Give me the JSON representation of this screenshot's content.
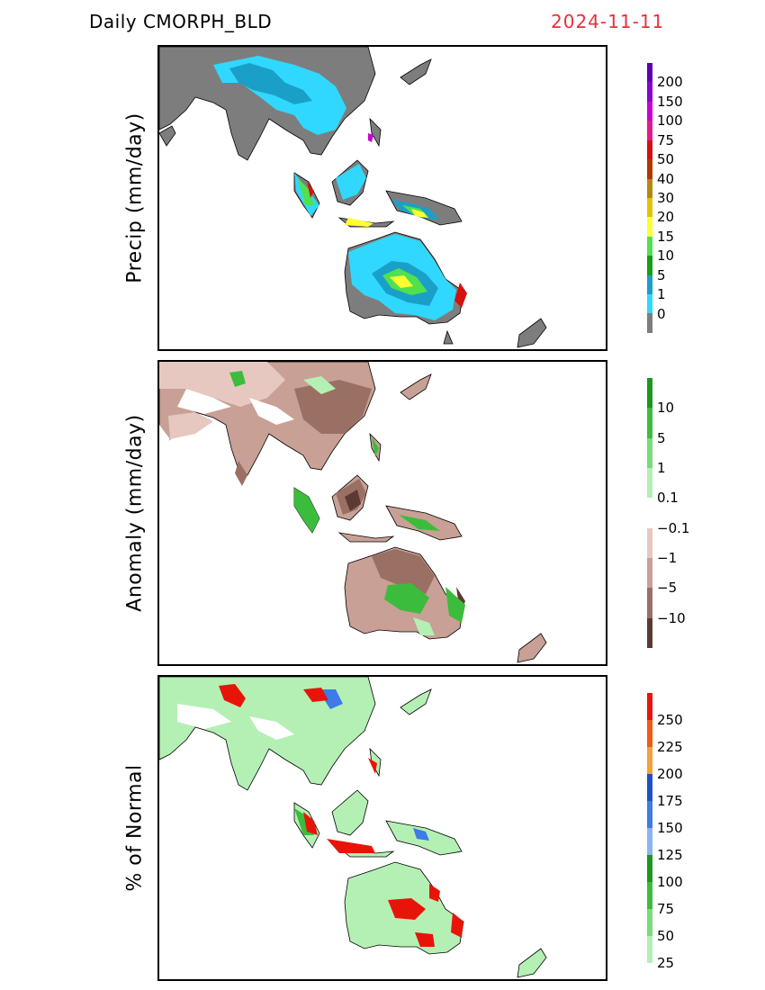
{
  "header": {
    "title": "Daily  CMORPH_BLD",
    "date": "2024-11-11"
  },
  "panels": [
    {
      "label": "Precip (mm/day)",
      "ticks": [
        "200",
        "150",
        "100",
        "75",
        "50",
        "40",
        "30",
        "20",
        "15",
        "10",
        "5",
        "1",
        "0"
      ],
      "colors": [
        "#5a00b0",
        "#8a00d0",
        "#c800d8",
        "#e6198c",
        "#d41010",
        "#b03800",
        "#b8860b",
        "#e2c400",
        "#ffff30",
        "#50e050",
        "#14a014",
        "#1aa0c8",
        "#30d8ff",
        "#7d7d7d"
      ]
    },
    {
      "label": "Anomaly (mm/day)",
      "ticks": [
        "10",
        "5",
        "1",
        "0.1",
        "−0.1",
        "−1",
        "−5",
        "−10"
      ],
      "colors": [
        "#1e961e",
        "#3cbc3c",
        "#78dc78",
        "#b4f0b4",
        "#ffffff",
        "#e6c8c0",
        "#c8a096",
        "#9a7064",
        "#5a3a32"
      ]
    },
    {
      "label": "% of Normal",
      "ticks": [
        "250",
        "225",
        "200",
        "175",
        "150",
        "125",
        "100",
        "75",
        "50",
        "25"
      ],
      "colors": [
        "#e8140a",
        "#f05a14",
        "#f5a03c",
        "#1e50c8",
        "#3c7ce6",
        "#8cb4f0",
        "#1e961e",
        "#3cbc3c",
        "#78dc78",
        "#b4f0b4"
      ]
    }
  ]
}
